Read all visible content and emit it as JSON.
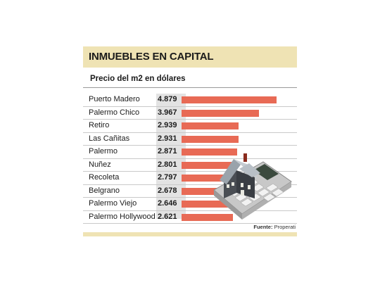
{
  "header": {
    "title": "INMUEBLES EN CAPITAL",
    "subtitle": "Precio del m2 en dólares"
  },
  "source": {
    "label": "Fuente:",
    "name": "Properati"
  },
  "colors": {
    "bar": "#e86a55",
    "band": "#efe3b4",
    "value_column": "#e3e3e3"
  },
  "illustration": "house-on-calculator",
  "chart_data": {
    "type": "bar",
    "orientation": "horizontal",
    "title": "INMUEBLES EN CAPITAL",
    "subtitle": "Precio del m2 en dólares",
    "categories": [
      "Puerto Madero",
      "Palermo Chico",
      "Retiro",
      "Las Cañitas",
      "Palermo",
      "Nuñez",
      "Recoleta",
      "Belgrano",
      "Palermo Viejo",
      "Palermo Hollywood"
    ],
    "values": [
      4879,
      3967,
      2939,
      2931,
      2871,
      2801,
      2797,
      2678,
      2646,
      2621
    ],
    "value_labels": [
      "4.879",
      "3.967",
      "2.939",
      "2.931",
      "2.871",
      "2.801",
      "2.797",
      "2.678",
      "2.646",
      "2.621"
    ],
    "grid": false
  }
}
